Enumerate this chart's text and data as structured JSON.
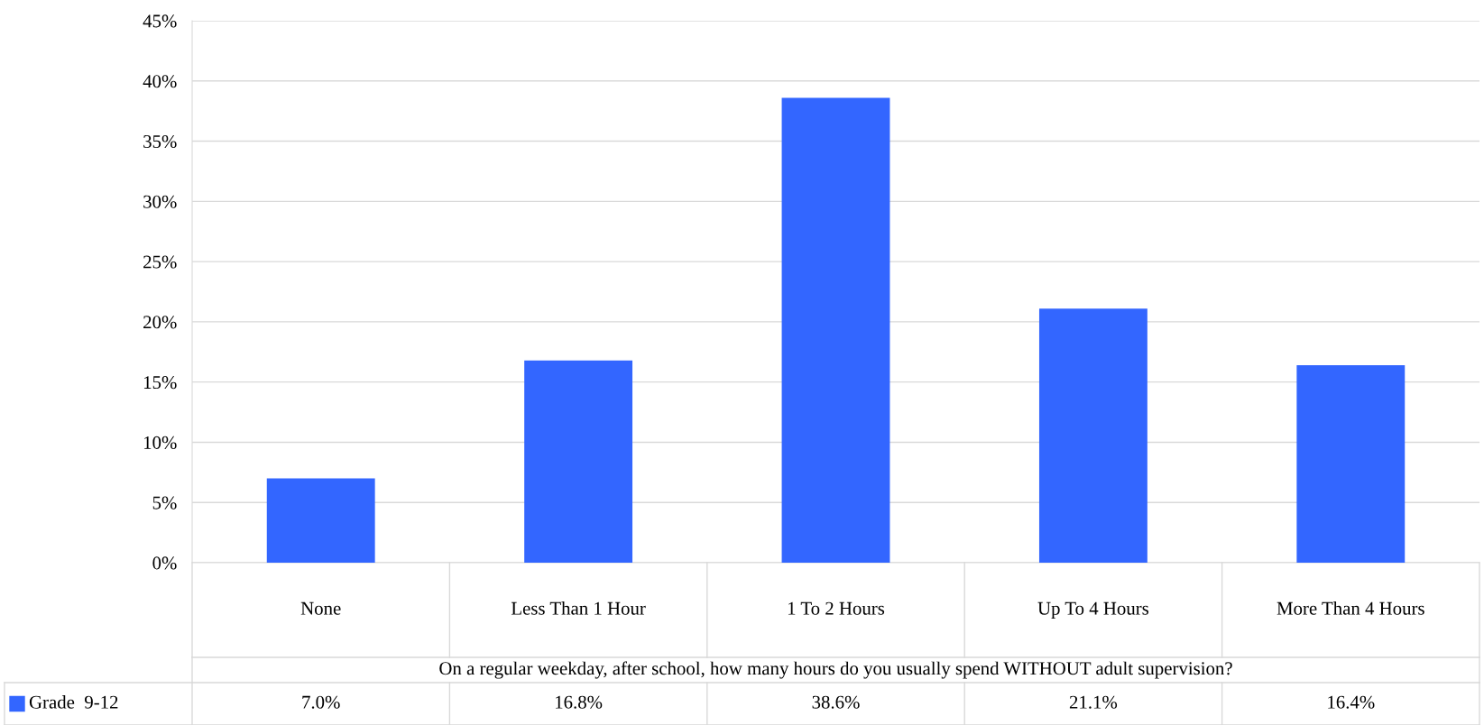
{
  "chart_data": {
    "type": "bar",
    "xlabel": "On a regular weekday, after school, how many hours do you usually spend WITHOUT adult supervision?",
    "categories": [
      "None",
      "Less Than 1 Hour",
      "1 To 2 Hours",
      "Up To 4 Hours",
      "More Than 4 Hours"
    ],
    "series": [
      {
        "name": "Grade  9-12",
        "color": "#3366ff",
        "values": [
          7.0,
          16.8,
          38.6,
          21.1,
          16.4
        ],
        "value_labels": [
          "7.0%",
          "16.8%",
          "38.6%",
          "21.1%",
          "16.4%"
        ]
      }
    ],
    "ylim": [
      0,
      45
    ],
    "yticks": [
      {
        "value": 0,
        "label": "0%"
      },
      {
        "value": 5,
        "label": "5%"
      },
      {
        "value": 10,
        "label": "10%"
      },
      {
        "value": 15,
        "label": "15%"
      },
      {
        "value": 20,
        "label": "20%"
      },
      {
        "value": 25,
        "label": "25%"
      },
      {
        "value": 30,
        "label": "30%"
      },
      {
        "value": 35,
        "label": "35%"
      },
      {
        "value": 40,
        "label": "40%"
      },
      {
        "value": 45,
        "label": "45%"
      }
    ],
    "grid": "y",
    "legend": "bottom"
  }
}
